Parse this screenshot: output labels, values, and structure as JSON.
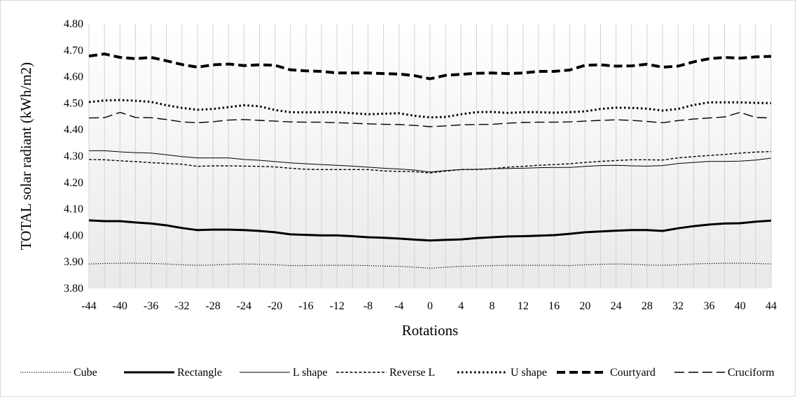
{
  "chart_data": {
    "type": "line",
    "title": "",
    "xlabel": "Rotations",
    "ylabel": "TOTAL solar radiant (kWh/m2)",
    "ylim": [
      3.8,
      4.8
    ],
    "yticks": [
      "3.80",
      "3.90",
      "4.00",
      "4.10",
      "4.20",
      "4.30",
      "4.40",
      "4.50",
      "4.60",
      "4.70",
      "4.80"
    ],
    "xticks": [
      "-44",
      "-40",
      "-36",
      "-32",
      "-28",
      "-24",
      "-20",
      "-16",
      "-12",
      "-8",
      "-4",
      "0",
      "4",
      "8",
      "12",
      "16",
      "20",
      "24",
      "28",
      "32",
      "36",
      "40",
      "44"
    ],
    "x": [
      -44,
      -42,
      -40,
      -38,
      -36,
      -34,
      -32,
      -30,
      -28,
      -26,
      -24,
      -22,
      -20,
      -18,
      -16,
      -14,
      -12,
      -10,
      -8,
      -6,
      -4,
      -2,
      0,
      2,
      4,
      6,
      8,
      10,
      12,
      14,
      16,
      18,
      20,
      22,
      24,
      26,
      28,
      30,
      32,
      34,
      36,
      38,
      40,
      42,
      44
    ],
    "grid": false,
    "legend_position": "bottom",
    "series": [
      {
        "name": "Cube",
        "style": "dotted-thin",
        "values": [
          3.892,
          3.894,
          3.895,
          3.895,
          3.894,
          3.892,
          3.889,
          3.887,
          3.888,
          3.891,
          3.892,
          3.891,
          3.889,
          3.886,
          3.886,
          3.887,
          3.887,
          3.887,
          3.886,
          3.884,
          3.883,
          3.88,
          3.876,
          3.88,
          3.883,
          3.884,
          3.886,
          3.887,
          3.887,
          3.887,
          3.887,
          3.886,
          3.889,
          3.891,
          3.892,
          3.891,
          3.888,
          3.887,
          3.889,
          3.892,
          3.894,
          3.895,
          3.895,
          3.894,
          3.892
        ]
      },
      {
        "name": "Rectangle",
        "style": "solid-thick",
        "values": [
          4.057,
          4.054,
          4.054,
          4.049,
          4.045,
          4.038,
          4.028,
          4.02,
          4.022,
          4.022,
          4.02,
          4.017,
          4.012,
          4.004,
          4.002,
          4.0,
          4.0,
          3.997,
          3.993,
          3.991,
          3.988,
          3.984,
          3.981,
          3.983,
          3.985,
          3.99,
          3.993,
          3.996,
          3.997,
          3.999,
          4.001,
          4.006,
          4.012,
          4.015,
          4.018,
          4.02,
          4.02,
          4.017,
          4.027,
          4.035,
          4.041,
          4.045,
          4.046,
          4.052,
          4.056
        ]
      },
      {
        "name": "L shape",
        "style": "solid-thin",
        "values": [
          4.32,
          4.32,
          4.316,
          4.313,
          4.311,
          4.305,
          4.298,
          4.293,
          4.293,
          4.293,
          4.287,
          4.284,
          4.279,
          4.274,
          4.271,
          4.268,
          4.265,
          4.262,
          4.258,
          4.254,
          4.251,
          4.247,
          4.24,
          4.245,
          4.249,
          4.25,
          4.252,
          4.253,
          4.254,
          4.256,
          4.257,
          4.257,
          4.261,
          4.264,
          4.265,
          4.263,
          4.262,
          4.264,
          4.272,
          4.276,
          4.28,
          4.28,
          4.281,
          4.285,
          4.292
        ]
      },
      {
        "name": "Reverse L",
        "style": "dashed-thin",
        "values": [
          4.287,
          4.286,
          4.282,
          4.279,
          4.275,
          4.272,
          4.269,
          4.261,
          4.263,
          4.263,
          4.262,
          4.261,
          4.259,
          4.254,
          4.25,
          4.249,
          4.249,
          4.249,
          4.249,
          4.244,
          4.242,
          4.241,
          4.236,
          4.243,
          4.249,
          4.249,
          4.252,
          4.258,
          4.261,
          4.265,
          4.268,
          4.271,
          4.276,
          4.28,
          4.283,
          4.286,
          4.286,
          4.285,
          4.293,
          4.298,
          4.302,
          4.306,
          4.311,
          4.315,
          4.317
        ]
      },
      {
        "name": "U shape",
        "style": "dotted-thick",
        "values": [
          4.504,
          4.51,
          4.512,
          4.509,
          4.505,
          4.492,
          4.482,
          4.475,
          4.478,
          4.485,
          4.492,
          4.488,
          4.474,
          4.466,
          4.465,
          4.466,
          4.466,
          4.462,
          4.458,
          4.46,
          4.462,
          4.452,
          4.446,
          4.448,
          4.458,
          4.466,
          4.467,
          4.463,
          4.466,
          4.466,
          4.464,
          4.466,
          4.469,
          4.478,
          4.483,
          4.482,
          4.479,
          4.472,
          4.478,
          4.493,
          4.503,
          4.503,
          4.503,
          4.501,
          4.5
        ]
      },
      {
        "name": "Courtyard",
        "style": "dashed-thick",
        "values": [
          4.678,
          4.686,
          4.673,
          4.668,
          4.673,
          4.66,
          4.646,
          4.636,
          4.645,
          4.648,
          4.642,
          4.645,
          4.643,
          4.626,
          4.622,
          4.62,
          4.614,
          4.614,
          4.614,
          4.612,
          4.61,
          4.604,
          4.592,
          4.605,
          4.609,
          4.613,
          4.614,
          4.612,
          4.614,
          4.62,
          4.62,
          4.625,
          4.643,
          4.645,
          4.64,
          4.641,
          4.647,
          4.636,
          4.64,
          4.656,
          4.668,
          4.673,
          4.67,
          4.675,
          4.677
        ]
      },
      {
        "name": "Cruciform",
        "style": "longdash-thin",
        "values": [
          4.444,
          4.445,
          4.465,
          4.446,
          4.445,
          4.438,
          4.429,
          4.426,
          4.43,
          4.436,
          4.438,
          4.435,
          4.432,
          4.429,
          4.428,
          4.428,
          4.426,
          4.424,
          4.422,
          4.42,
          4.419,
          4.416,
          4.411,
          4.414,
          4.418,
          4.419,
          4.42,
          4.424,
          4.427,
          4.428,
          4.428,
          4.429,
          4.432,
          4.435,
          4.437,
          4.435,
          4.431,
          4.426,
          4.434,
          4.44,
          4.444,
          4.448,
          4.465,
          4.446,
          4.444
        ]
      }
    ]
  }
}
